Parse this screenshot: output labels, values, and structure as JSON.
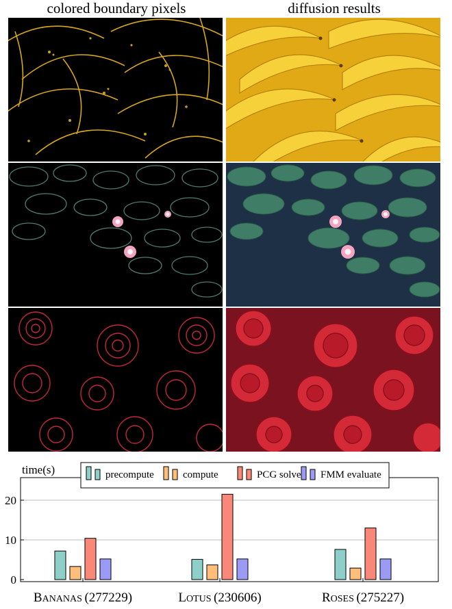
{
  "headers": {
    "left": "colored boundary pixels",
    "right": "diffusion results"
  },
  "rows": [
    {
      "name": "bananas",
      "boundary_color": "#d9b21a",
      "result_color": "#f2c428",
      "result_dark": "#c58f0e",
      "background": "#000000"
    },
    {
      "name": "lotus",
      "boundary_color": "#4d7a68",
      "result_color": "#3f7a66",
      "result_dark": "#1b2e3f",
      "background": "#000000"
    },
    {
      "name": "roses",
      "boundary_color": "#c0283a",
      "result_color": "#cf2434",
      "result_dark": "#6e0c16",
      "background": "#000000"
    }
  ],
  "chart_data": {
    "type": "bar",
    "ylabel": "time(s)",
    "ylim": [
      0,
      24
    ],
    "yticks": [
      "0",
      "10",
      "20"
    ],
    "ytick_values": [
      0,
      10,
      20
    ],
    "grid": true,
    "legend_position": "top-center",
    "categories": [
      "Bananas (277229)",
      "Lotus (230606)",
      "Roses (275227)"
    ],
    "category_parts": [
      {
        "name": "Bananas",
        "count": "(277229)"
      },
      {
        "name": "Lotus",
        "count": "(230606)"
      },
      {
        "name": "Roses",
        "count": "(275227)"
      }
    ],
    "series": [
      {
        "name": "precompute",
        "color": "#8ecfc9",
        "values": [
          7.2,
          5.1,
          7.6
        ]
      },
      {
        "name": "compute",
        "color": "#ffbe7a",
        "values": [
          3.3,
          3.7,
          2.9
        ]
      },
      {
        "name": "PCG solve",
        "color": "#fa8878",
        "values": [
          10.4,
          21.5,
          13.0
        ]
      },
      {
        "name": "FMM evaluate",
        "color": "#9b9bf5",
        "values": [
          5.2,
          5.2,
          5.2
        ]
      }
    ]
  }
}
